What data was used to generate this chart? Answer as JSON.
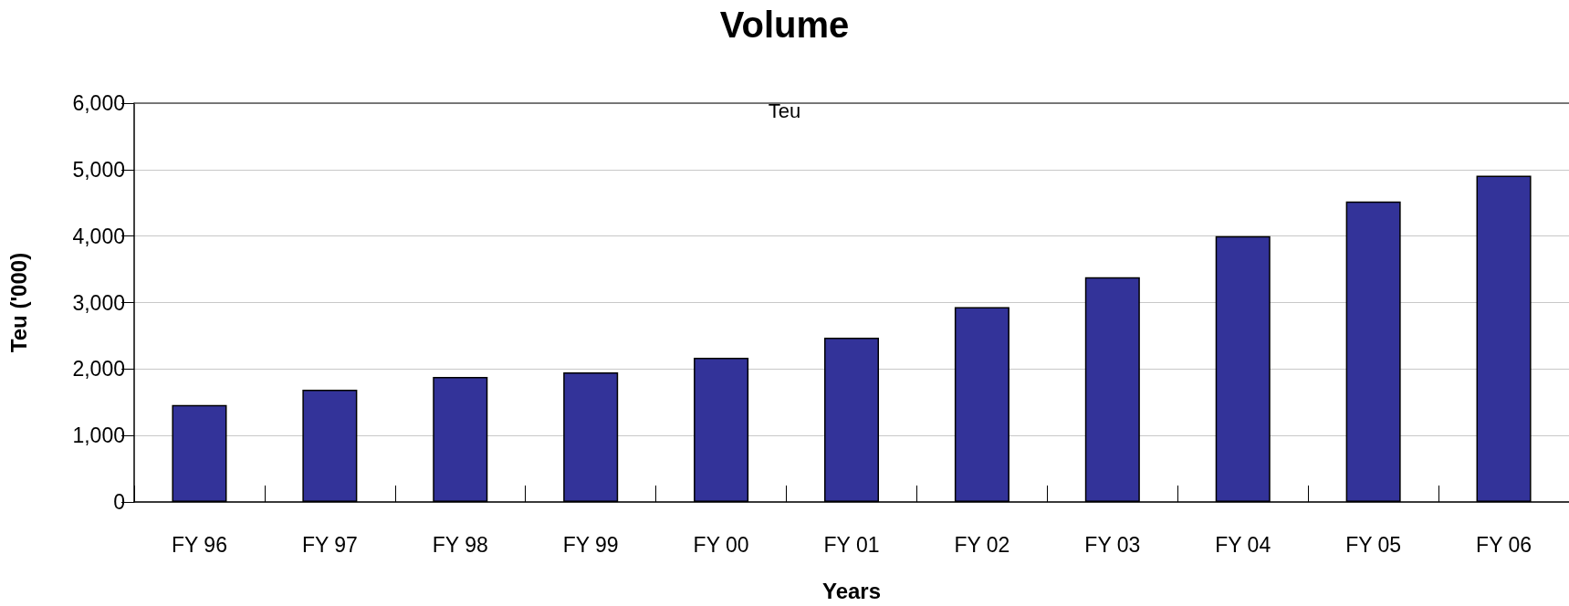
{
  "chart_data": {
    "type": "bar",
    "title": "Volume",
    "xlabel": "Years",
    "ylabel": "Teu ('000)",
    "annotations": [
      "Teu"
    ],
    "categories": [
      "FY 96",
      "FY 97",
      "FY 98",
      "FY 99",
      "FY 00",
      "FY 01",
      "FY 02",
      "FY 03",
      "FY 04",
      "FY 05",
      "FY 06"
    ],
    "values": [
      1460,
      1690,
      1880,
      1950,
      2170,
      2470,
      2930,
      3380,
      4000,
      4520,
      4910
    ],
    "color": "#333399",
    "ylim": [
      0,
      6000
    ],
    "yticks": [
      0,
      {
        "value": 1000,
        "label": "1,000"
      },
      {
        "value": 2000,
        "label": "2,000"
      },
      {
        "value": 3000,
        "label": "3,000"
      },
      {
        "value": 4000,
        "label": "4,000"
      },
      {
        "value": 5000,
        "label": "5,000"
      },
      {
        "value": 6000,
        "label": "6,000"
      }
    ],
    "grid": "y"
  }
}
